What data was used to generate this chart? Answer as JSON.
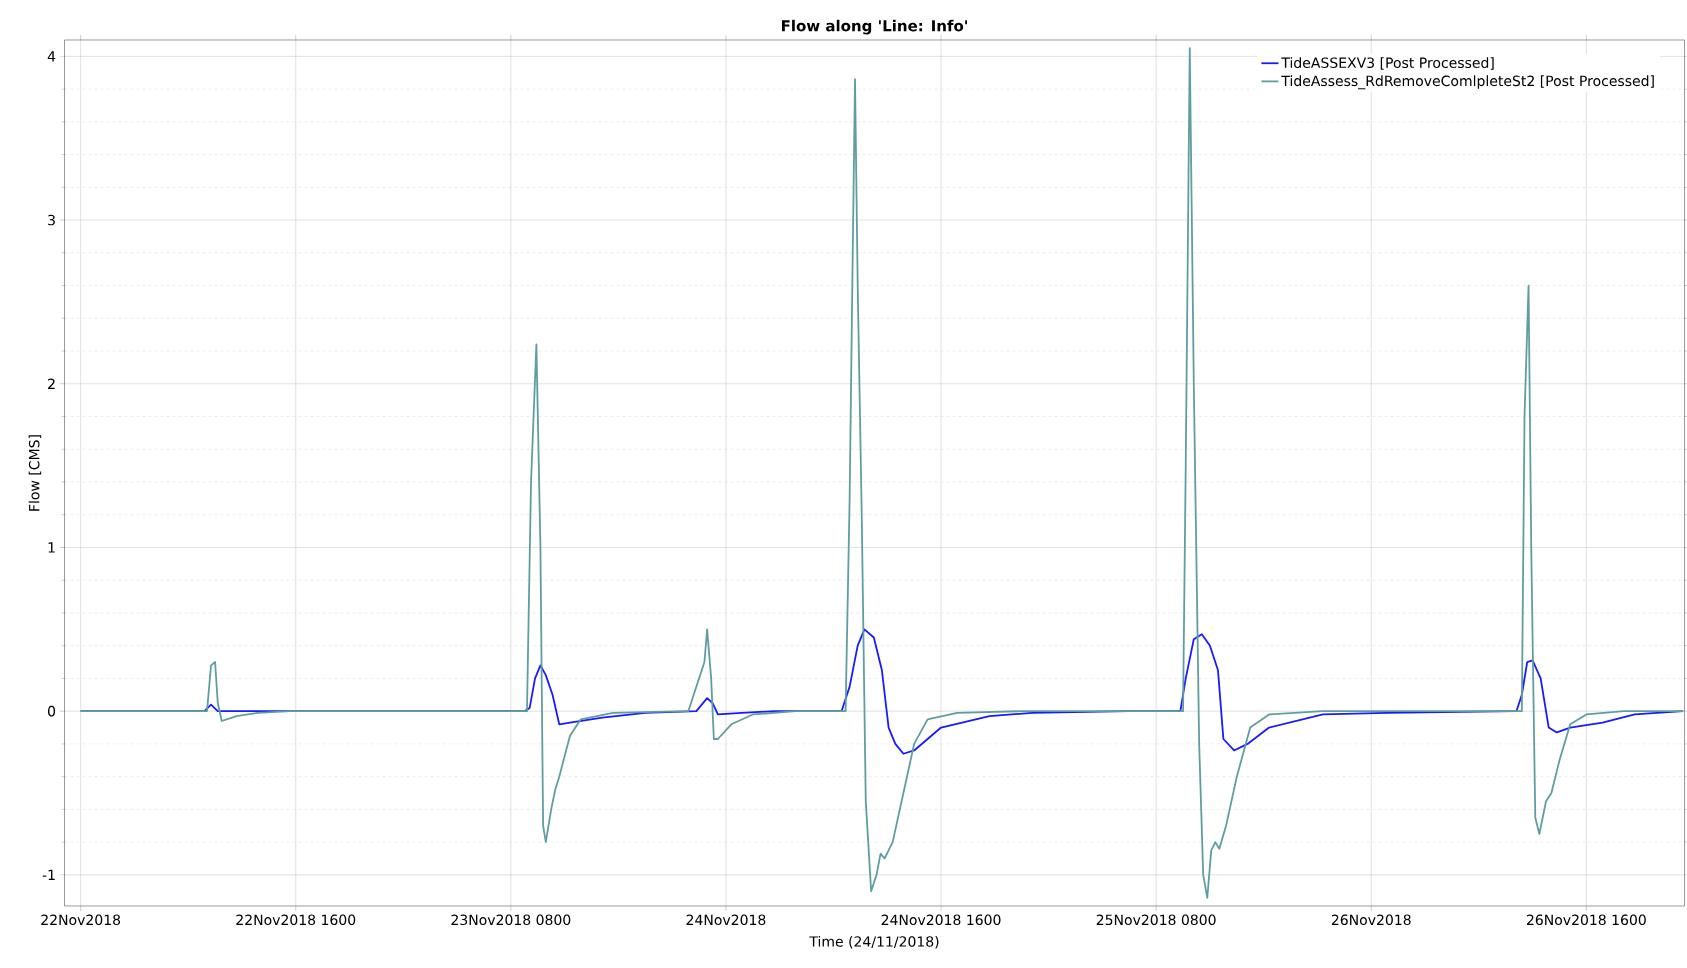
{
  "chart_data": {
    "type": "line",
    "title": "Flow along 'Line: Info'",
    "xlabel": "Time (24/11/2018)",
    "ylabel": "Flow [CMS]",
    "xlim": [
      "2018-11-21T22:48",
      "2018-11-26T23:18"
    ],
    "xticks": [
      {
        "value": "2018-11-22T00:00",
        "label": "22Nov2018"
      },
      {
        "value": "2018-11-22T16:00",
        "label": "22Nov2018 1600"
      },
      {
        "value": "2018-11-23T08:00",
        "label": "23Nov2018 0800"
      },
      {
        "value": "2018-11-24T00:00",
        "label": "24Nov2018"
      },
      {
        "value": "2018-11-24T16:00",
        "label": "24Nov2018 1600"
      },
      {
        "value": "2018-11-25T08:00",
        "label": "25Nov2018 0800"
      },
      {
        "value": "2018-11-26T00:00",
        "label": "26Nov2018"
      },
      {
        "value": "2018-11-26T16:00",
        "label": "26Nov2018 1600"
      }
    ],
    "ylim": [
      -1.19,
      4.1
    ],
    "yticks": [
      -1,
      0,
      1,
      2,
      3,
      4
    ],
    "grid": true,
    "legend": "top right",
    "marker": "none",
    "line_style": "solid",
    "series": [
      {
        "name": "TideASSEXV3 [Post Processed]",
        "color": "#1a1aff",
        "x": [
          "2018-11-22T00:00",
          "2018-11-22T09:12",
          "2018-11-22T09:42",
          "2018-11-22T10:12",
          "2018-11-23T09:00",
          "2018-11-23T09:24",
          "2018-11-23T09:48",
          "2018-11-23T10:12",
          "2018-11-23T10:36",
          "2018-11-23T11:06",
          "2018-11-23T11:36",
          "2018-11-23T12:24",
          "2018-11-23T14:48",
          "2018-11-23T18:00",
          "2018-11-23T21:48",
          "2018-11-23T22:36",
          "2018-11-23T23:00",
          "2018-11-23T23:24",
          "2018-11-24T01:12",
          "2018-11-24T03:36",
          "2018-11-24T08:36",
          "2018-11-24T09:12",
          "2018-11-24T09:48",
          "2018-11-24T10:18",
          "2018-11-24T11:00",
          "2018-11-24T11:36",
          "2018-11-24T12:06",
          "2018-11-24T12:36",
          "2018-11-24T13:12",
          "2018-11-24T14:00",
          "2018-11-24T16:00",
          "2018-11-24T19:36",
          "2018-11-24T22:48",
          "2018-11-25T06:00",
          "2018-11-25T09:48",
          "2018-11-25T10:12",
          "2018-11-25T10:48",
          "2018-11-25T11:24",
          "2018-11-25T12:00",
          "2018-11-25T12:36",
          "2018-11-25T13:00",
          "2018-11-25T13:48",
          "2018-11-25T14:48",
          "2018-11-25T16:24",
          "2018-11-25T20:24",
          "2018-11-26T01:12",
          "2018-11-26T10:48",
          "2018-11-26T11:12",
          "2018-11-26T11:36",
          "2018-11-26T12:00",
          "2018-11-26T12:36",
          "2018-11-26T13:12",
          "2018-11-26T13:48",
          "2018-11-26T14:48",
          "2018-11-26T17:12",
          "2018-11-26T19:36",
          "2018-11-26T23:12"
        ],
        "values": [
          0,
          0,
          0.04,
          0,
          0,
          0.02,
          0.2,
          0.28,
          0.22,
          0.1,
          -0.08,
          -0.07,
          -0.04,
          -0.01,
          0,
          0.08,
          0.05,
          -0.02,
          -0.01,
          0,
          0,
          0.15,
          0.4,
          0.5,
          0.45,
          0.25,
          -0.1,
          -0.2,
          -0.26,
          -0.24,
          -0.1,
          -0.03,
          -0.01,
          0,
          0,
          0.2,
          0.44,
          0.47,
          0.4,
          0.25,
          -0.17,
          -0.24,
          -0.2,
          -0.1,
          -0.02,
          -0.01,
          0,
          0.1,
          0.3,
          0.31,
          0.2,
          -0.1,
          -0.13,
          -0.1,
          -0.07,
          -0.02,
          0
        ]
      },
      {
        "name": "TideAssess_RdRemoveComlpleteSt2 [Post Processed]",
        "color": "#5f9ea0",
        "x": [
          "2018-11-22T00:00",
          "2018-11-22T09:24",
          "2018-11-22T09:42",
          "2018-11-22T10:00",
          "2018-11-22T10:12",
          "2018-11-22T10:30",
          "2018-11-22T11:36",
          "2018-11-22T13:12",
          "2018-11-22T15:36",
          "2018-11-23T09:12",
          "2018-11-23T09:30",
          "2018-11-23T09:54",
          "2018-11-23T10:12",
          "2018-11-23T10:24",
          "2018-11-23T10:36",
          "2018-11-23T11:00",
          "2018-11-23T11:18",
          "2018-11-23T11:36",
          "2018-11-23T12:24",
          "2018-11-23T13:12",
          "2018-11-23T15:36",
          "2018-11-23T21:12",
          "2018-11-23T22:24",
          "2018-11-23T22:36",
          "2018-11-23T22:54",
          "2018-11-23T23:06",
          "2018-11-23T23:24",
          "2018-11-24T00:24",
          "2018-11-24T02:00",
          "2018-11-24T05:12",
          "2018-11-24T08:54",
          "2018-11-24T09:12",
          "2018-11-24T09:24",
          "2018-11-24T09:36",
          "2018-11-24T09:48",
          "2018-11-24T10:06",
          "2018-11-24T10:24",
          "2018-11-24T10:48",
          "2018-11-24T11:12",
          "2018-11-24T11:30",
          "2018-11-24T11:48",
          "2018-11-24T12:24",
          "2018-11-24T13:12",
          "2018-11-24T14:00",
          "2018-11-24T15:00",
          "2018-11-24T17:12",
          "2018-11-24T22:00",
          "2018-11-25T10:00",
          "2018-11-25T10:12",
          "2018-11-25T10:30",
          "2018-11-25T10:48",
          "2018-11-25T11:12",
          "2018-11-25T11:30",
          "2018-11-25T11:48",
          "2018-11-25T12:06",
          "2018-11-25T12:24",
          "2018-11-25T12:42",
          "2018-11-25T13:12",
          "2018-11-25T14:00",
          "2018-11-25T15:00",
          "2018-11-25T16:24",
          "2018-11-25T20:24",
          "2018-11-26T11:12",
          "2018-11-26T11:24",
          "2018-11-26T11:42",
          "2018-11-26T11:54",
          "2018-11-26T12:12",
          "2018-11-26T12:30",
          "2018-11-26T13:00",
          "2018-11-26T13:24",
          "2018-11-26T14:00",
          "2018-11-26T14:48",
          "2018-11-26T16:00",
          "2018-11-26T18:48",
          "2018-11-26T23:12"
        ],
        "values": [
          0,
          0,
          0.28,
          0.3,
          0.05,
          -0.06,
          -0.03,
          -0.01,
          0,
          0,
          1.4,
          2.24,
          1.0,
          -0.7,
          -0.8,
          -0.6,
          -0.48,
          -0.4,
          -0.15,
          -0.05,
          -0.01,
          0,
          0.3,
          0.5,
          0.2,
          -0.17,
          -0.17,
          -0.08,
          -0.02,
          0,
          0,
          1.3,
          2.6,
          3.86,
          2.6,
          1.2,
          -0.55,
          -1.1,
          -1.0,
          -0.87,
          -0.9,
          -0.8,
          -0.5,
          -0.2,
          -0.05,
          -0.01,
          0,
          0,
          1.5,
          4.05,
          2.0,
          -0.2,
          -1.0,
          -1.14,
          -0.85,
          -0.8,
          -0.84,
          -0.7,
          -0.4,
          -0.1,
          -0.02,
          0,
          0,
          1.8,
          2.6,
          1.0,
          -0.65,
          -0.75,
          -0.55,
          -0.5,
          -0.3,
          -0.08,
          -0.02,
          0,
          0
        ]
      }
    ]
  }
}
